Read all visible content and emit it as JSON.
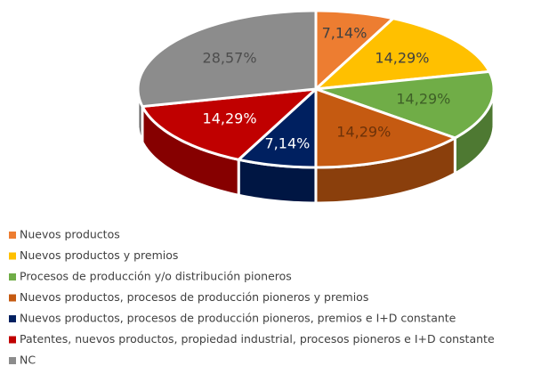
{
  "chart_data": {
    "type": "pie3d",
    "categories": [
      "Nuevos productos",
      "Nuevos productos y premios",
      "Procesos de producción y/o distribución pioneros",
      "Nuevos productos, procesos de producción pioneros y premios",
      "Nuevos productos, procesos de producción pioneros, premios e I+D constante",
      "Patentes, nuevos productos, propiedad industrial, procesos pioneros e I+D constante",
      "NC"
    ],
    "values": [
      7.14,
      14.29,
      14.29,
      14.29,
      7.14,
      14.29,
      28.57
    ],
    "value_labels": [
      "7,14%",
      "14,29%",
      "14,29%",
      "14,29%",
      "7,14%",
      "14,29%",
      "28,57%"
    ],
    "colors": [
      "#ed7d31",
      "#ffc000",
      "#70ad47",
      "#c55a11",
      "#002060",
      "#c00000",
      "#8c8c8c"
    ],
    "legend": "bottom-left"
  }
}
